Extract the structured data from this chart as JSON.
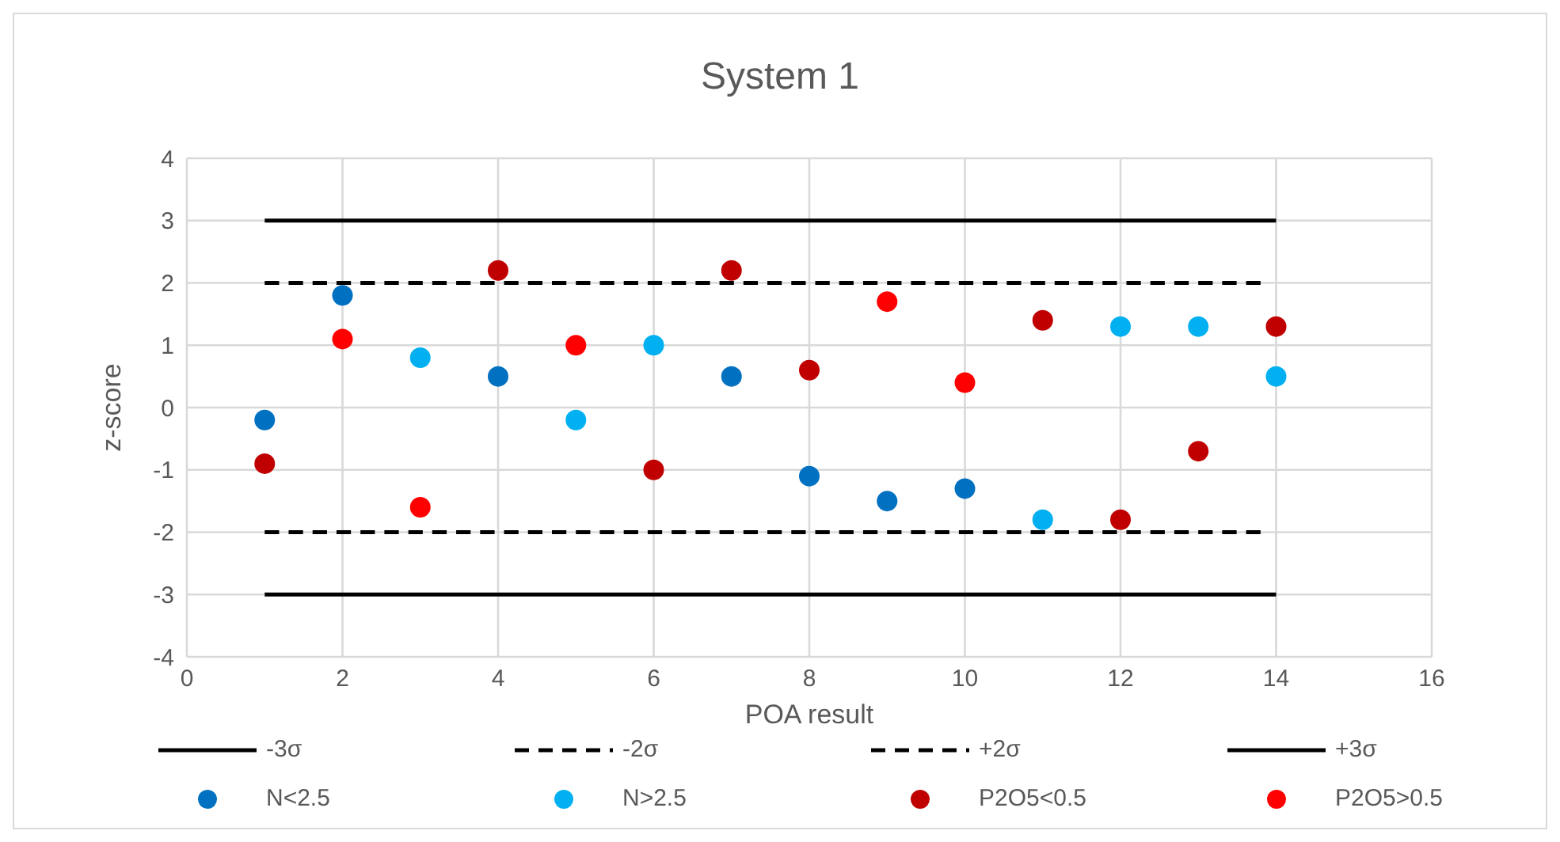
{
  "chart_data": {
    "type": "scatter",
    "title": "System 1",
    "xlabel": "POA result",
    "ylabel": "z-score",
    "xlim": [
      0,
      16
    ],
    "xticks": [
      0,
      2,
      4,
      6,
      8,
      10,
      12,
      14,
      16
    ],
    "ylim": [
      -4,
      4
    ],
    "yticks": [
      -4,
      -3,
      -2,
      -1,
      0,
      1,
      2,
      3,
      4
    ],
    "grid": true,
    "legend": "bottom",
    "marker": "circle",
    "series": [
      {
        "name": "-3σ",
        "type": "line",
        "color": "#000000",
        "line_style": "solid",
        "marker": "none",
        "x": [
          1,
          14
        ],
        "values": [
          -3,
          -3
        ]
      },
      {
        "name": "-2σ",
        "type": "line",
        "color": "#000000",
        "line_style": "dashed",
        "marker": "none",
        "x": [
          1,
          13.8
        ],
        "values": [
          -2,
          -2
        ]
      },
      {
        "name": "+2σ",
        "type": "line",
        "color": "#000000",
        "line_style": "dashed",
        "marker": "none",
        "x": [
          1,
          13.8
        ],
        "values": [
          2,
          2
        ]
      },
      {
        "name": "+3σ",
        "type": "line",
        "color": "#000000",
        "line_style": "solid",
        "marker": "none",
        "x": [
          1,
          14
        ],
        "values": [
          3,
          3
        ]
      },
      {
        "name": "N<2.5",
        "color": "#0070c0",
        "x": [
          1,
          2,
          4,
          7,
          8,
          9,
          10
        ],
        "values": [
          -0.2,
          1.8,
          0.5,
          0.5,
          -1.1,
          -1.5,
          -1.3
        ]
      },
      {
        "name": "N>2.5",
        "color": "#00b0f0",
        "x": [
          3,
          5,
          6,
          11,
          12,
          13,
          14
        ],
        "values": [
          0.8,
          -0.2,
          1,
          -1.8,
          1.3,
          1.3,
          0.5
        ]
      },
      {
        "name": "P2O5<0.5",
        "color": "#c00000",
        "x": [
          1,
          4,
          6,
          7,
          8,
          11,
          12,
          13,
          14
        ],
        "values": [
          -0.9,
          2.2,
          -1,
          2.2,
          0.6,
          1.4,
          -1.8,
          -0.7,
          1.3
        ]
      },
      {
        "name": "P2O5>0.5",
        "color": "#ff0000",
        "x": [
          2,
          3,
          5,
          9,
          10
        ],
        "values": [
          1.1,
          -1.6,
          1,
          1.7,
          0.4
        ]
      }
    ]
  }
}
